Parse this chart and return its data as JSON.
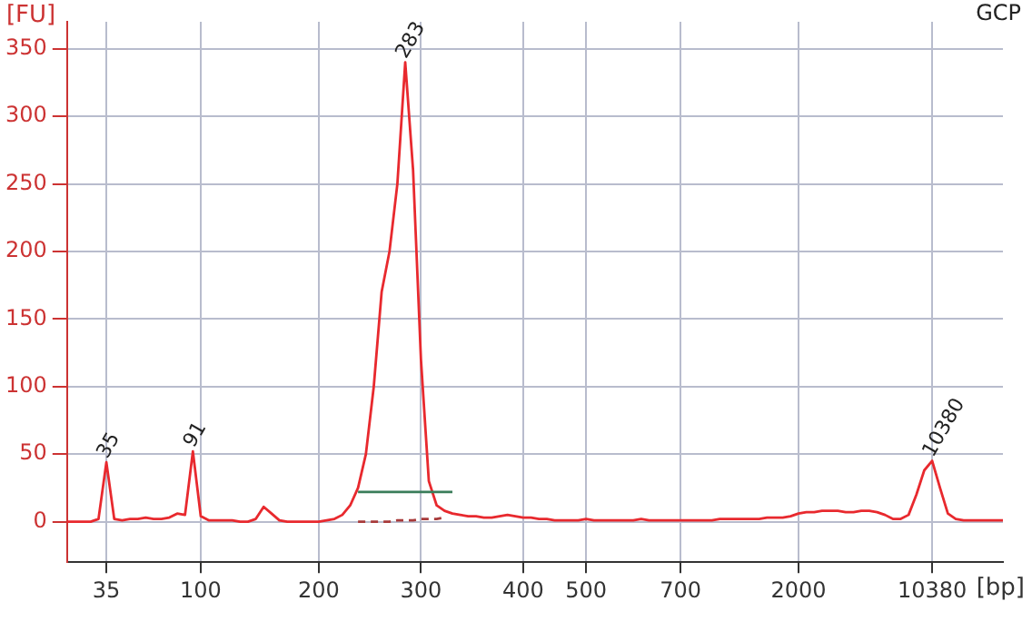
{
  "chart_data": {
    "type": "line",
    "ylabel": "[FU]",
    "xlabel": "[bp]",
    "annotations": [
      "GCP",
      {
        "text": "35",
        "x": "35",
        "y": 44
      },
      {
        "text": "91",
        "y": 52
      },
      {
        "text": "283",
        "y": 340
      },
      {
        "text": "10380",
        "x": "10380",
        "y": 45
      }
    ],
    "categories": [
      null,
      null,
      null,
      null,
      null,
      "35",
      null,
      null,
      null,
      null,
      null,
      null,
      null,
      null,
      null,
      null,
      null,
      "100",
      null,
      null,
      null,
      null,
      null,
      null,
      null,
      null,
      null,
      null,
      null,
      null,
      null,
      null,
      "200",
      null,
      null,
      null,
      null,
      null,
      null,
      null,
      null,
      null,
      null,
      null,
      null,
      "300",
      null,
      null,
      null,
      null,
      null,
      null,
      null,
      null,
      null,
      null,
      null,
      null,
      "400",
      null,
      null,
      null,
      null,
      null,
      null,
      null,
      "500",
      null,
      null,
      null,
      null,
      null,
      null,
      null,
      null,
      null,
      null,
      null,
      "700",
      null,
      null,
      null,
      null,
      null,
      null,
      null,
      null,
      null,
      null,
      null,
      null,
      null,
      null,
      "2000",
      null,
      null,
      null,
      null,
      null,
      null,
      null,
      null,
      null,
      null,
      null,
      null,
      null,
      null,
      null,
      null,
      "10380",
      null,
      null,
      null,
      null,
      null,
      null,
      null,
      null,
      null
    ],
    "series": [
      {
        "color": "#e8292e",
        "values": [
          0,
          0,
          0,
          0,
          2,
          44,
          2,
          1,
          2,
          2,
          3,
          2,
          2,
          3,
          6,
          5,
          52,
          4,
          1,
          1,
          1,
          1,
          0,
          0,
          2,
          11,
          6,
          1,
          0,
          0,
          0,
          0,
          0,
          1,
          2,
          5,
          12,
          25,
          50,
          100,
          170,
          200,
          250,
          340,
          260,
          120,
          30,
          12,
          8,
          6,
          5,
          4,
          4,
          3,
          3,
          4,
          5,
          4,
          3,
          3,
          2,
          2,
          1,
          1,
          1,
          1,
          2,
          1,
          1,
          1,
          1,
          1,
          1,
          2,
          1,
          1,
          1,
          1,
          1,
          1,
          1,
          1,
          1,
          2,
          2,
          2,
          2,
          2,
          2,
          3,
          3,
          3,
          4,
          6,
          7,
          7,
          8,
          8,
          8,
          7,
          7,
          8,
          8,
          7,
          5,
          2,
          2,
          5,
          20,
          38,
          45,
          25,
          6,
          2,
          1,
          1,
          1,
          1,
          1,
          1
        ],
        "name": null
      },
      {
        "color": "#3a7d5a",
        "values": [
          null,
          null,
          null,
          null,
          null,
          null,
          null,
          null,
          null,
          null,
          null,
          null,
          null,
          null,
          null,
          null,
          null,
          null,
          null,
          null,
          null,
          null,
          null,
          null,
          null,
          null,
          null,
          null,
          null,
          null,
          null,
          null,
          null,
          null,
          null,
          null,
          null,
          22,
          22,
          22,
          22,
          22,
          22,
          22,
          22,
          22,
          22,
          22,
          22,
          22,
          null,
          null,
          null,
          null,
          null,
          null,
          null,
          null,
          null,
          null,
          null,
          null,
          null,
          null,
          null,
          null,
          null,
          null,
          null,
          null,
          null,
          null,
          null,
          null,
          null,
          null,
          null,
          null,
          null,
          null,
          null,
          null,
          null,
          null,
          null,
          null,
          null,
          null,
          null,
          null,
          null,
          null,
          null,
          null,
          null,
          null,
          null,
          null,
          null,
          null,
          null,
          null,
          null,
          null,
          null,
          null,
          null,
          null,
          null,
          null,
          null,
          null,
          null,
          null,
          null,
          null,
          null,
          null,
          null,
          null
        ]
      },
      {
        "color": "#a83a3a",
        "line_style": "dashed",
        "values": [
          null,
          null,
          null,
          null,
          null,
          null,
          null,
          null,
          null,
          null,
          null,
          null,
          null,
          null,
          null,
          null,
          null,
          null,
          null,
          null,
          null,
          null,
          null,
          null,
          null,
          null,
          null,
          null,
          null,
          null,
          null,
          null,
          null,
          null,
          null,
          null,
          null,
          0,
          0,
          0,
          0,
          0,
          1,
          1,
          1,
          2,
          2,
          2,
          3,
          null,
          null,
          null,
          null,
          null,
          null,
          null,
          null,
          null,
          null,
          null,
          null,
          null,
          null,
          null,
          null,
          null,
          null,
          null,
          null,
          null,
          null,
          null,
          null,
          null,
          null,
          null,
          null,
          null,
          null,
          null,
          null,
          null,
          null,
          null,
          null,
          null,
          null,
          null,
          null,
          null,
          null,
          null,
          null,
          null,
          null,
          null,
          null,
          null,
          null,
          null,
          null,
          null,
          null,
          null,
          null,
          null,
          null,
          null,
          null,
          null,
          null,
          null,
          null,
          null,
          null,
          null,
          null,
          null,
          null,
          null
        ]
      }
    ],
    "ylim": [
      -30,
      370
    ],
    "yticks": [
      0,
      50,
      100,
      150,
      200,
      250,
      300,
      350
    ],
    "grid": true,
    "marker": "none"
  }
}
